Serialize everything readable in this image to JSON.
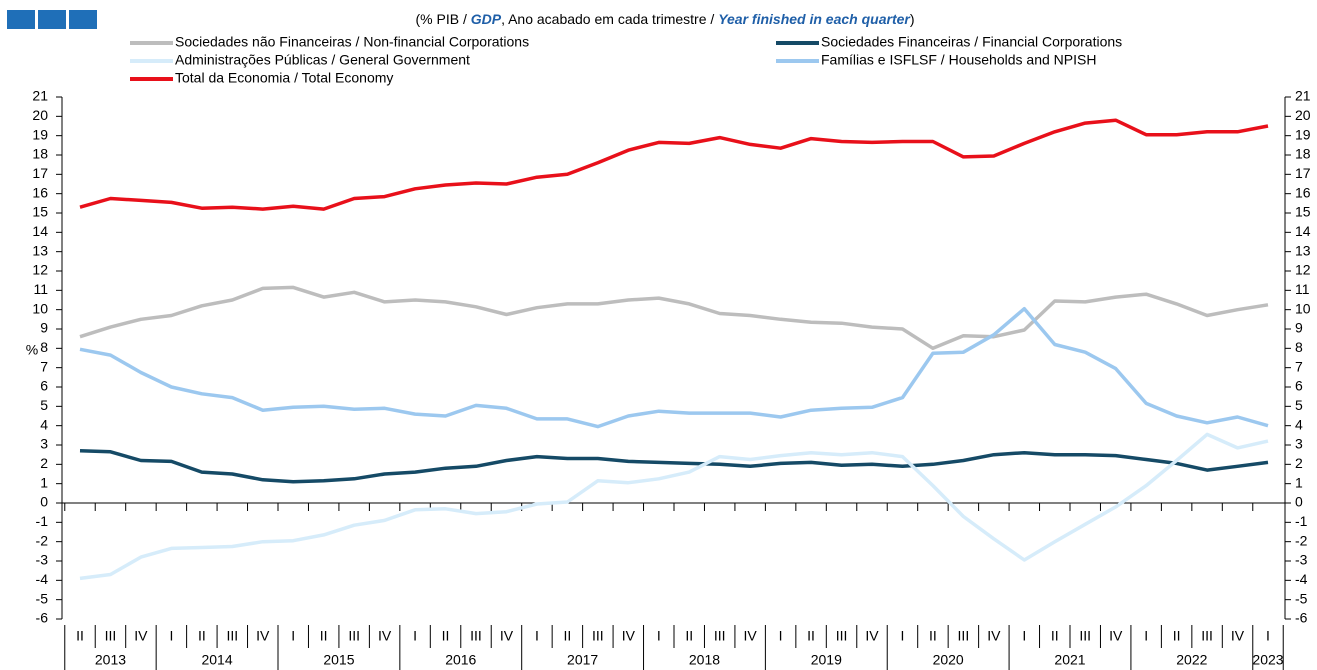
{
  "chart_data": {
    "type": "line",
    "title_parts": [
      "(% PIB / ",
      "GDP",
      ", Ano acabado em cada trimestre / ",
      "Year finished in each quarter",
      ")"
    ],
    "y_label": "%",
    "categories": [
      "II",
      "III",
      "IV",
      "I",
      "II",
      "III",
      "IV",
      "I",
      "II",
      "III",
      "IV",
      "I",
      "II",
      "III",
      "IV",
      "I",
      "II",
      "III",
      "IV",
      "I",
      "II",
      "III",
      "IV",
      "I",
      "II",
      "III",
      "IV",
      "I",
      "II",
      "III",
      "IV",
      "I",
      "II",
      "III",
      "IV",
      "I",
      "II",
      "III",
      "IV",
      "I"
    ],
    "years": [
      "2013",
      "2014",
      "2015",
      "2016",
      "2017",
      "2018",
      "2019",
      "2020",
      "2021",
      "2022",
      "2023"
    ],
    "series": [
      {
        "name": "Sociedades não Financeiras / Non-financial Corporations",
        "color": "#bdbdbd",
        "values": [
          8.6,
          9.1,
          9.5,
          9.7,
          10.2,
          10.5,
          11.1,
          11.15,
          10.65,
          10.9,
          10.4,
          10.5,
          10.4,
          10.15,
          9.75,
          10.1,
          10.3,
          10.3,
          10.5,
          10.6,
          10.3,
          9.8,
          9.7,
          9.5,
          9.35,
          9.3,
          9.1,
          9.0,
          8.0,
          8.65,
          8.6,
          8.95,
          10.45,
          10.4,
          10.65,
          10.8,
          10.3,
          9.7,
          10.0,
          10.25
        ]
      },
      {
        "name": "Sociedades Financeiras / Financial Corporations",
        "color": "#154a66",
        "values": [
          2.7,
          2.65,
          2.2,
          2.15,
          1.6,
          1.5,
          1.2,
          1.1,
          1.15,
          1.25,
          1.5,
          1.6,
          1.8,
          1.9,
          2.2,
          2.4,
          2.3,
          2.3,
          2.15,
          2.1,
          2.05,
          2.0,
          1.9,
          2.05,
          2.1,
          1.95,
          2.0,
          1.9,
          2.0,
          2.2,
          2.5,
          2.6,
          2.5,
          2.5,
          2.45,
          2.25,
          2.05,
          1.7,
          1.9,
          2.1
        ]
      },
      {
        "name": "Administrações Públicas / General Government",
        "color": "#d6ecfa",
        "values": [
          -3.9,
          -3.7,
          -2.8,
          -2.35,
          -2.3,
          -2.25,
          -2.0,
          -1.95,
          -1.65,
          -1.15,
          -0.9,
          -0.35,
          -0.3,
          -0.55,
          -0.45,
          -0.05,
          0.05,
          1.15,
          1.05,
          1.25,
          1.6,
          2.4,
          2.25,
          2.45,
          2.6,
          2.5,
          2.6,
          2.4,
          0.9,
          -0.7,
          -1.85,
          -2.95,
          -2.0,
          -1.1,
          -0.2,
          0.9,
          2.2,
          3.55,
          2.85,
          3.2
        ]
      },
      {
        "name": "Famílias e ISFLSF / Households and NPISH",
        "color": "#9cc8ef",
        "values": [
          7.95,
          7.65,
          6.75,
          6.0,
          5.65,
          5.45,
          4.8,
          4.95,
          5.0,
          4.85,
          4.9,
          4.6,
          4.5,
          5.05,
          4.9,
          4.35,
          4.35,
          3.95,
          4.5,
          4.75,
          4.65,
          4.65,
          4.65,
          4.45,
          4.8,
          4.9,
          4.95,
          5.45,
          7.75,
          7.8,
          8.7,
          10.05,
          8.2,
          7.8,
          6.95,
          5.15,
          4.5,
          4.15,
          4.45,
          4.0
        ]
      },
      {
        "name": "Total da Economia / Total Economy",
        "color": "#e8101a",
        "values": [
          15.3,
          15.75,
          15.65,
          15.55,
          15.25,
          15.3,
          15.2,
          15.35,
          15.2,
          15.75,
          15.85,
          16.25,
          16.45,
          16.55,
          16.5,
          16.85,
          17.0,
          17.6,
          18.25,
          18.65,
          18.6,
          18.9,
          18.55,
          18.35,
          18.85,
          18.7,
          18.65,
          18.7,
          18.7,
          17.9,
          17.95,
          18.6,
          19.2,
          19.65,
          19.8,
          19.05,
          19.05,
          19.2,
          19.2,
          19.5
        ]
      }
    ],
    "ylim": [
      -6,
      21
    ],
    "yticks": [
      -6,
      -5,
      -4,
      -3,
      -2,
      -1,
      0,
      1,
      2,
      3,
      4,
      5,
      6,
      7,
      8,
      9,
      10,
      11,
      12,
      13,
      14,
      15,
      16,
      17,
      18,
      19,
      20,
      21
    ]
  }
}
